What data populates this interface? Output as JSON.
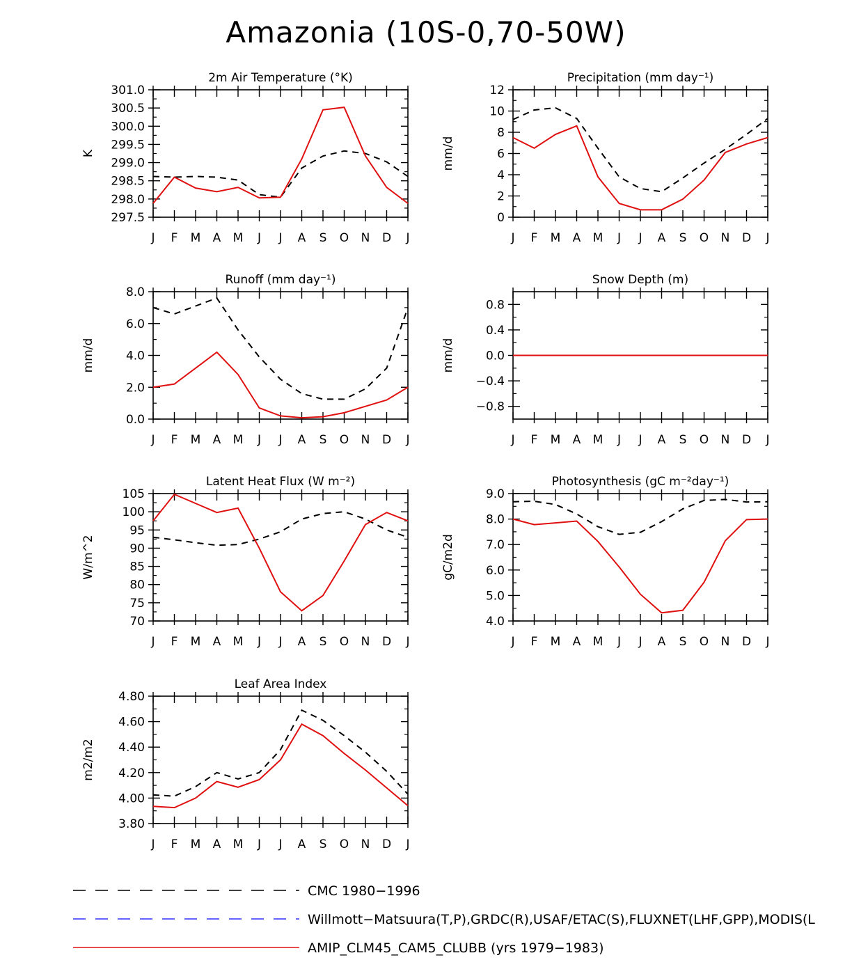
{
  "title": "Amazonia (10S-0,70-50W)",
  "months": [
    "J",
    "F",
    "M",
    "A",
    "M",
    "J",
    "J",
    "A",
    "S",
    "O",
    "N",
    "D",
    "J"
  ],
  "colors": {
    "obs": "#000000",
    "obs2": "#3030ff",
    "model": "#e01010"
  },
  "chart_data": [
    {
      "type": "line",
      "title": "2m Air Temperature (°K)",
      "ylabel": "K",
      "ylim": [
        297.5,
        301.0
      ],
      "yticks": [
        297.5,
        298.0,
        298.5,
        299.0,
        299.5,
        300.0,
        300.5,
        301.0
      ],
      "ytick_labels": [
        "297.5",
        "298.0",
        "298.5",
        "299.0",
        "299.5",
        "300.0",
        "300.5",
        "301.0"
      ],
      "series": [
        {
          "name": "CMC 1980-1996",
          "style": "dashed",
          "color": "#000000",
          "values": [
            298.62,
            298.6,
            298.62,
            298.6,
            298.52,
            298.12,
            298.05,
            298.85,
            299.18,
            299.32,
            299.25,
            299.02,
            298.62
          ]
        },
        {
          "name": "AMIP_CLM45_CAM5_CLUBB (yrs 1979-1983)",
          "style": "solid",
          "color": "#e01010",
          "values": [
            297.88,
            298.6,
            298.3,
            298.2,
            298.32,
            298.03,
            298.05,
            299.1,
            300.45,
            300.52,
            299.18,
            298.32,
            297.88
          ]
        }
      ]
    },
    {
      "type": "line",
      "title": "Precipitation (mm day⁻¹)",
      "ylabel": "mm/d",
      "ylim": [
        0,
        12
      ],
      "yticks": [
        0,
        2,
        4,
        6,
        8,
        10,
        12
      ],
      "ytick_labels": [
        "0",
        "2",
        "4",
        "6",
        "8",
        "10",
        "12"
      ],
      "series": [
        {
          "name": "CMC 1980-1996",
          "style": "dashed",
          "color": "#000000",
          "values": [
            9.2,
            10.1,
            10.3,
            9.3,
            6.5,
            3.8,
            2.7,
            2.4,
            3.7,
            5.1,
            6.4,
            7.8,
            9.3
          ]
        },
        {
          "name": "AMIP_CLM45_CAM5_CLUBB (yrs 1979-1983)",
          "style": "solid",
          "color": "#e01010",
          "values": [
            7.5,
            6.5,
            7.8,
            8.6,
            3.8,
            1.3,
            0.7,
            0.7,
            1.7,
            3.5,
            6.1,
            6.9,
            7.5
          ]
        }
      ]
    },
    {
      "type": "line",
      "title": "Runoff (mm day⁻¹)",
      "ylabel": "mm/d",
      "ylim": [
        0,
        8
      ],
      "yticks": [
        0,
        2,
        4,
        6,
        8
      ],
      "ytick_labels": [
        "0.0",
        "2.0",
        "4.0",
        "6.0",
        "8.0"
      ],
      "series": [
        {
          "name": "CMC 1980-1996",
          "style": "dashed",
          "color": "#000000",
          "values": [
            7.0,
            6.6,
            7.1,
            7.6,
            5.6,
            3.9,
            2.5,
            1.6,
            1.25,
            1.25,
            1.9,
            3.2,
            7.0
          ]
        },
        {
          "name": "AMIP_CLM45_CAM5_CLUBB (yrs 1979-1983)",
          "style": "solid",
          "color": "#e01010",
          "values": [
            2.0,
            2.2,
            3.2,
            4.2,
            2.8,
            0.7,
            0.2,
            0.08,
            0.15,
            0.4,
            0.8,
            1.2,
            2.0
          ]
        }
      ]
    },
    {
      "type": "line",
      "title": "Snow Depth (m)",
      "ylabel": "mm/d",
      "ylim": [
        -1.0,
        1.0
      ],
      "yticks": [
        -0.8,
        -0.4,
        0.0,
        0.4,
        0.8
      ],
      "ytick_labels": [
        "−0.8",
        "−0.4",
        "0.0",
        "0.4",
        "0.8"
      ],
      "series": [
        {
          "name": "CMC 1980-1996",
          "style": "dashed",
          "color": "#000000",
          "values": [
            0,
            0,
            0,
            0,
            0,
            0,
            0,
            0,
            0,
            0,
            0,
            0,
            0
          ]
        },
        {
          "name": "AMIP_CLM45_CAM5_CLUBB (yrs 1979-1983)",
          "style": "solid",
          "color": "#e01010",
          "values": [
            0,
            0,
            0,
            0,
            0,
            0,
            0,
            0,
            0,
            0,
            0,
            0,
            0
          ]
        }
      ]
    },
    {
      "type": "line",
      "title": "Latent Heat Flux (W m⁻²)",
      "ylabel": "W/m^2",
      "ylim": [
        70,
        105
      ],
      "yticks": [
        70,
        75,
        80,
        85,
        90,
        95,
        100,
        105
      ],
      "ytick_labels": [
        "70",
        "75",
        "80",
        "85",
        "90",
        "95",
        "100",
        "105"
      ],
      "series": [
        {
          "name": "CMC 1980-1996",
          "style": "dashed",
          "color": "#000000",
          "values": [
            93.0,
            92.3,
            91.5,
            90.8,
            91.0,
            92.5,
            94.5,
            98.0,
            99.5,
            100.0,
            98.0,
            95.0,
            93.0
          ]
        },
        {
          "name": "AMIP_CLM45_CAM5_CLUBB (yrs 1979-1983)",
          "style": "solid",
          "color": "#e01010",
          "values": [
            97.5,
            104.8,
            102.3,
            99.8,
            101.0,
            90.0,
            78.0,
            72.8,
            77.0,
            86.5,
            96.5,
            99.8,
            97.5
          ]
        }
      ]
    },
    {
      "type": "line",
      "title": "Photosynthesis (gC m⁻²day⁻¹)",
      "ylabel": "gC/m2d",
      "ylim": [
        4.0,
        9.0
      ],
      "yticks": [
        4,
        5,
        6,
        7,
        8,
        9
      ],
      "ytick_labels": [
        "4.0",
        "5.0",
        "6.0",
        "7.0",
        "8.0",
        "9.0"
      ],
      "series": [
        {
          "name": "CMC 1980-1996",
          "style": "dashed",
          "color": "#000000",
          "values": [
            8.68,
            8.7,
            8.57,
            8.2,
            7.7,
            7.4,
            7.48,
            7.9,
            8.4,
            8.73,
            8.77,
            8.67,
            8.68
          ]
        },
        {
          "name": "AMIP_CLM45_CAM5_CLUBB (yrs 1979-1983)",
          "style": "solid",
          "color": "#e01010",
          "values": [
            8.0,
            7.78,
            7.85,
            7.92,
            7.12,
            6.12,
            5.05,
            4.32,
            4.42,
            5.52,
            7.15,
            7.98,
            8.0
          ]
        }
      ]
    },
    {
      "type": "line",
      "title": "Leaf Area Index",
      "ylabel": "m2/m2",
      "ylim": [
        3.8,
        4.8
      ],
      "yticks": [
        3.8,
        4.0,
        4.2,
        4.4,
        4.6,
        4.8
      ],
      "ytick_labels": [
        "3.80",
        "4.00",
        "4.20",
        "4.40",
        "4.60",
        "4.80"
      ],
      "series": [
        {
          "name": "CMC 1980-1996",
          "style": "dashed",
          "color": "#000000",
          "values": [
            4.025,
            4.015,
            4.09,
            4.2,
            4.15,
            4.2,
            4.38,
            4.69,
            4.61,
            4.49,
            4.36,
            4.21,
            4.03
          ]
        },
        {
          "name": "AMIP_CLM45_CAM5_CLUBB (yrs 1979-1983)",
          "style": "solid",
          "color": "#e01010",
          "values": [
            3.935,
            3.925,
            4.0,
            4.13,
            4.085,
            4.145,
            4.3,
            4.58,
            4.49,
            4.35,
            4.22,
            4.08,
            3.94
          ]
        }
      ]
    }
  ],
  "legend": [
    {
      "label": "CMC 1980−1996",
      "style": "dashed",
      "color": "#000000"
    },
    {
      "label": "Willmott−Matsuura(T,P),GRDC(R),USAF/ETAC(S),FLUXNET(LHF,GPP),MODIS(L",
      "style": "dashed",
      "color": "#3030ff"
    },
    {
      "label": "AMIP_CLM45_CAM5_CLUBB (yrs 1979−1983)",
      "style": "solid",
      "color": "#e01010"
    }
  ]
}
